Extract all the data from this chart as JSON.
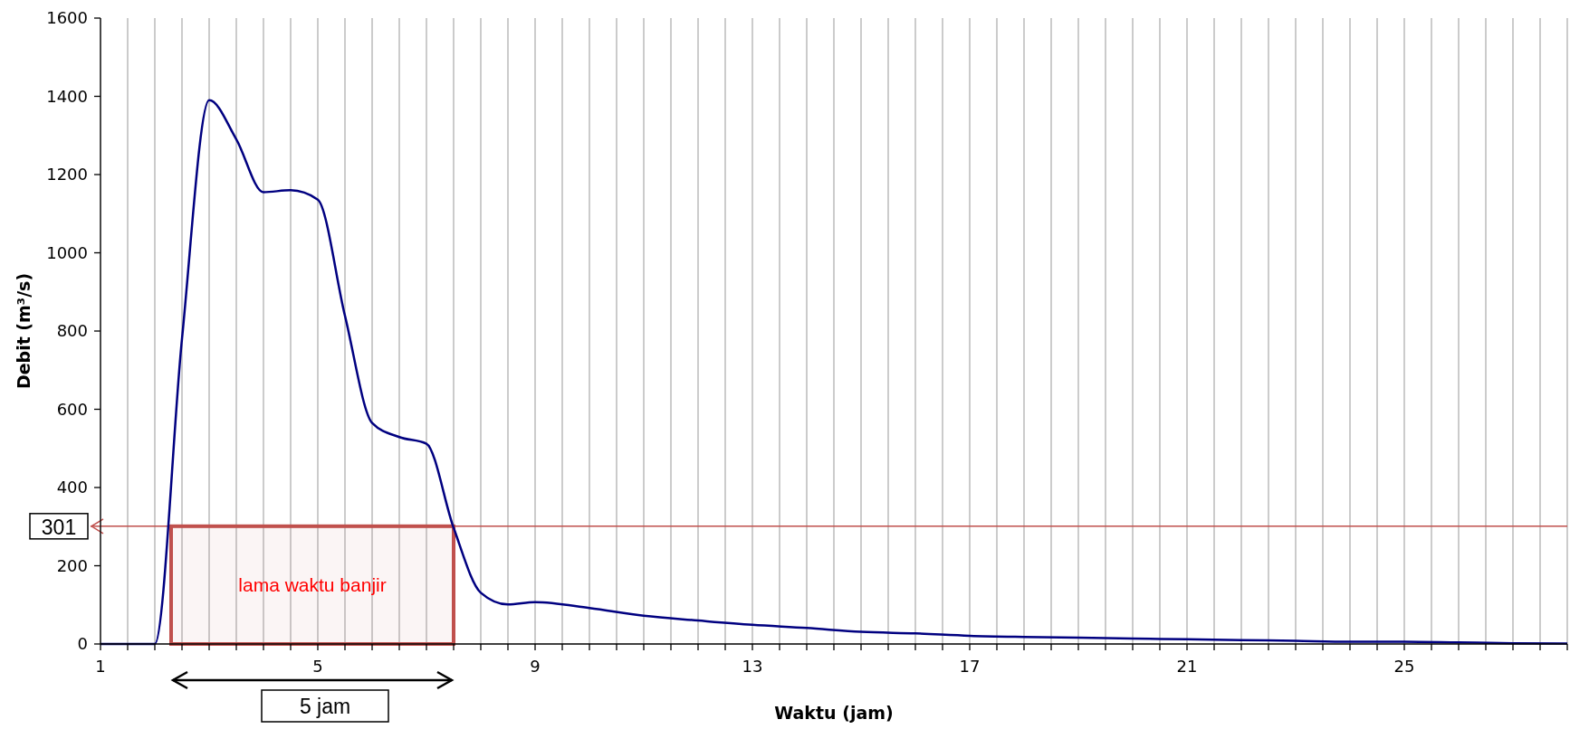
{
  "chart_data": {
    "type": "line",
    "xlabel": "Waktu (jam)",
    "ylabel": "Debit (m³/s)",
    "x": [
      1,
      2,
      2.5,
      3,
      3.5,
      4,
      4.5,
      5,
      5.5,
      6,
      6.5,
      7,
      7.5,
      8,
      8.5,
      9,
      10,
      11,
      12,
      13,
      14,
      15,
      16,
      17,
      18,
      19,
      20,
      21,
      22,
      23,
      24,
      25,
      26,
      27,
      28
    ],
    "series": [
      {
        "color": "#000080",
        "values": [
          0,
          0,
          780,
          1390,
          1290,
          1155,
          1160,
          1136,
          839,
          565,
          529,
          512,
          297,
          131,
          101,
          107,
          92,
          72,
          60,
          49,
          41,
          31,
          27,
          21,
          18,
          16,
          14,
          12,
          10,
          8,
          6,
          6,
          4,
          2,
          1
        ]
      }
    ],
    "xlim": [
      1,
      28
    ],
    "xticks": [
      1,
      {
        "value": 1.5,
        "label": null
      },
      {
        "value": 2,
        "label": null
      },
      {
        "value": 2.5,
        "label": null
      },
      {
        "value": 3,
        "label": null
      },
      {
        "value": 3.5,
        "label": null
      },
      {
        "value": 4,
        "label": null
      },
      {
        "value": 4.5,
        "label": null
      },
      5,
      {
        "value": 5.5,
        "label": null
      },
      {
        "value": 6,
        "label": null
      },
      {
        "value": 6.5,
        "label": null
      },
      {
        "value": 7,
        "label": null
      },
      {
        "value": 7.5,
        "label": null
      },
      {
        "value": 8,
        "label": null
      },
      {
        "value": 8.5,
        "label": null
      },
      9,
      {
        "value": 9.5,
        "label": null
      },
      {
        "value": 10,
        "label": null
      },
      {
        "value": 10.5,
        "label": null
      },
      {
        "value": 11,
        "label": null
      },
      {
        "value": 11.5,
        "label": null
      },
      {
        "value": 12,
        "label": null
      },
      {
        "value": 12.5,
        "label": null
      },
      13,
      {
        "value": 13.5,
        "label": null
      },
      {
        "value": 14,
        "label": null
      },
      {
        "value": 14.5,
        "label": null
      },
      {
        "value": 15,
        "label": null
      },
      {
        "value": 15.5,
        "label": null
      },
      {
        "value": 16,
        "label": null
      },
      {
        "value": 16.5,
        "label": null
      },
      17,
      {
        "value": 17.5,
        "label": null
      },
      {
        "value": 18,
        "label": null
      },
      {
        "value": 18.5,
        "label": null
      },
      {
        "value": 19,
        "label": null
      },
      {
        "value": 19.5,
        "label": null
      },
      {
        "value": 20,
        "label": null
      },
      {
        "value": 20.5,
        "label": null
      },
      21,
      {
        "value": 21.5,
        "label": null
      },
      {
        "value": 22,
        "label": null
      },
      {
        "value": 22.5,
        "label": null
      },
      {
        "value": 23,
        "label": null
      },
      {
        "value": 23.5,
        "label": null
      },
      {
        "value": 24,
        "label": null
      },
      {
        "value": 24.5,
        "label": null
      },
      25,
      {
        "value": 25.5,
        "label": null
      },
      {
        "value": 26,
        "label": null
      },
      {
        "value": 26.5,
        "label": null
      },
      {
        "value": 27,
        "label": null
      },
      {
        "value": 27.5,
        "label": null
      },
      {
        "value": 28,
        "label": null
      }
    ],
    "ylim": [
      0,
      1600
    ],
    "yticks": [
      0,
      200,
      400,
      600,
      800,
      1000,
      1200,
      1400,
      1600
    ],
    "grid": "x",
    "marker": "none",
    "line_style": "solid",
    "ref_lines": [
      {
        "axis": "y",
        "value": 301,
        "label": "301",
        "color": "#c0504d"
      }
    ],
    "bands": [
      {
        "axis": "x",
        "from": 2.3,
        "to": 7.5,
        "label": "lama waktu banjir",
        "color": "#c0504d"
      }
    ],
    "annotations": [
      "5 jam"
    ]
  }
}
